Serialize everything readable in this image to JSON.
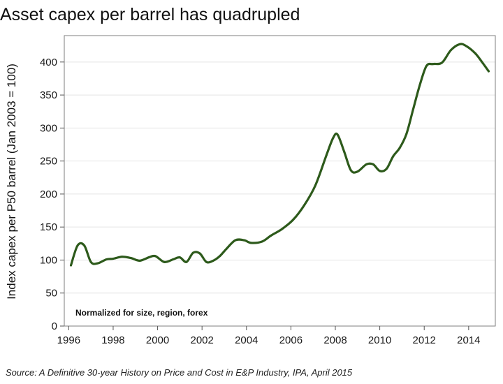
{
  "chart_data": {
    "type": "line",
    "title": "Asset capex per barrel has quadrupled",
    "ylabel": "Index capex per P50 barrel (Jan 2003 = 100)",
    "xlabel": "",
    "annotation": "Normalized for size, region, forex",
    "source": "Source: A Definitive 30-year History on Price and Cost in E&P Industry, IPA, April 2015",
    "xlim": [
      1995.8,
      2015.2
    ],
    "ylim": [
      0,
      440
    ],
    "x_ticks": [
      "1996",
      "1998",
      "2000",
      "2002",
      "2004",
      "2006",
      "2008",
      "2010",
      "2012",
      "2014"
    ],
    "y_ticks": [
      "0",
      "50",
      "100",
      "150",
      "200",
      "250",
      "300",
      "350",
      "400"
    ],
    "grid": "horizontal",
    "line_color": "#2d5a1b",
    "series": [
      {
        "x": [
          1996.1,
          1996.4,
          1996.7,
          1997.0,
          1997.3,
          1997.7,
          1998.0,
          1998.4,
          1998.8,
          1999.2,
          1999.6,
          1999.9,
          2000.3,
          2000.7,
          2001.0,
          2001.3,
          2001.6,
          2001.9,
          2002.2,
          2002.5,
          2002.8,
          2003.1,
          2003.5,
          2003.9,
          2004.2,
          2004.7,
          2005.1,
          2005.6,
          2006.1,
          2006.6,
          2007.1,
          2007.6,
          2007.9,
          2008.1,
          2008.4,
          2008.7,
          2009.0,
          2009.4,
          2009.7,
          2010.0,
          2010.3,
          2010.6,
          2010.9,
          2011.2,
          2011.5,
          2011.8,
          2012.1,
          2012.4,
          2012.8,
          2013.2,
          2013.6,
          2013.9,
          2014.3,
          2014.6,
          2014.9
        ],
        "y": [
          92,
          122,
          122,
          97,
          95,
          101,
          102,
          105,
          103,
          99,
          104,
          106,
          97,
          101,
          104,
          97,
          111,
          110,
          97,
          99,
          106,
          117,
          130,
          130,
          126,
          128,
          137,
          147,
          161,
          183,
          213,
          259,
          285,
          290,
          264,
          236,
          234,
          245,
          245,
          235,
          238,
          257,
          270,
          291,
          328,
          365,
          394,
          397,
          399,
          418,
          427,
          424,
          413,
          400,
          386
        ]
      }
    ]
  }
}
